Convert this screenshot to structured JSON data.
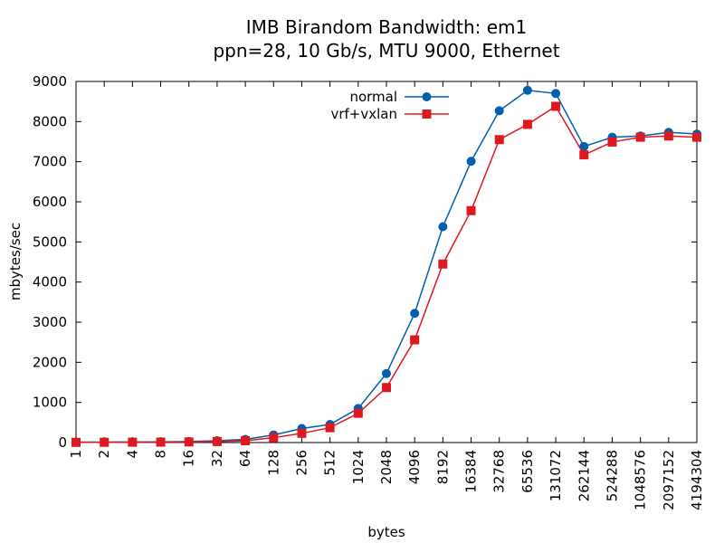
{
  "chart_data": {
    "type": "line",
    "title": [
      "IMB Birandom Bandwidth: em1",
      "ppn=28, 10 Gb/s, MTU 9000, Ethernet"
    ],
    "xlabel": "bytes",
    "ylabel": "mbytes/sec",
    "ylim": [
      0,
      9000
    ],
    "yticks": [
      0,
      1000,
      2000,
      3000,
      4000,
      5000,
      6000,
      7000,
      8000,
      9000
    ],
    "categories": [
      "1",
      "2",
      "4",
      "8",
      "16",
      "32",
      "64",
      "128",
      "256",
      "512",
      "1024",
      "2048",
      "4096",
      "8192",
      "16384",
      "32768",
      "65536",
      "131072",
      "262144",
      "524288",
      "1048576",
      "2097152",
      "4194304"
    ],
    "grid": false,
    "legend_position": "top-center",
    "series": [
      {
        "name": "normal",
        "color": "#0060ad",
        "marker": "circle",
        "values": [
          10,
          12,
          14,
          18,
          25,
          45,
          80,
          190,
          350,
          450,
          850,
          1720,
          3220,
          5380,
          7010,
          8270,
          8780,
          8700,
          7380,
          7610,
          7640,
          7730,
          7690
        ]
      },
      {
        "name": "vrf+vxlan",
        "color": "#dd181f",
        "marker": "square",
        "values": [
          5,
          6,
          8,
          10,
          15,
          25,
          45,
          120,
          230,
          370,
          730,
          1370,
          2560,
          4450,
          5780,
          7550,
          7930,
          8380,
          7170,
          7490,
          7610,
          7640,
          7610
        ]
      }
    ]
  }
}
